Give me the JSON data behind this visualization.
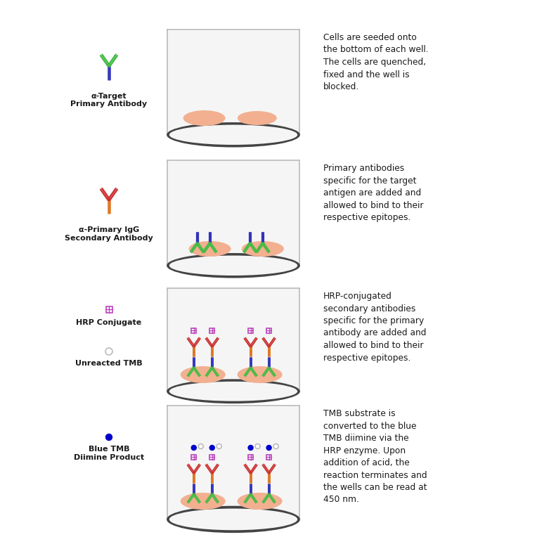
{
  "bg_color": "#ffffff",
  "cell_color": "#f2b090",
  "well_bg_color": "#f5f5f5",
  "well_border_color": "#bbbbbb",
  "well_bottom_color": "#444444",
  "text_color": "#1a1a1a",
  "green_ab": "#44bb44",
  "blue_ab": "#3333bb",
  "orange_ab": "#dd7722",
  "red_ab": "#cc3333",
  "hrp_color": "#bb44bb",
  "tmb_blue": "#0000cc",
  "tmb_unreacted": "#bbbbbb",
  "row_labels": [
    "α-Target\nPrimary Antibody",
    "α-Primary IgG\nSecondary Antibody",
    "HRP Conjugate",
    "Unreacted TMB",
    "Blue TMB\nDiimine Product"
  ],
  "row_descriptions": [
    "Cells are seeded onto\nthe bottom of each well.\nThe cells are quenched,\nfixed and the well is\nblocked.",
    "Primary antibodies\nspecific for the target\nantigen are added and\nallowed to bind to their\nrespective epitopes.",
    "HRP-conjugated\nsecondary antibodies\nspecific for the primary\nantibody are added and\nallowed to bind to their\nrespective epitopes.",
    "TMB substrate is\nconverted to the blue\nTMB diimine via the\nHRP enzyme. Upon\naddition of acid, the\nreaction terminates and\nthe wells can be read at\n450 nm."
  ]
}
